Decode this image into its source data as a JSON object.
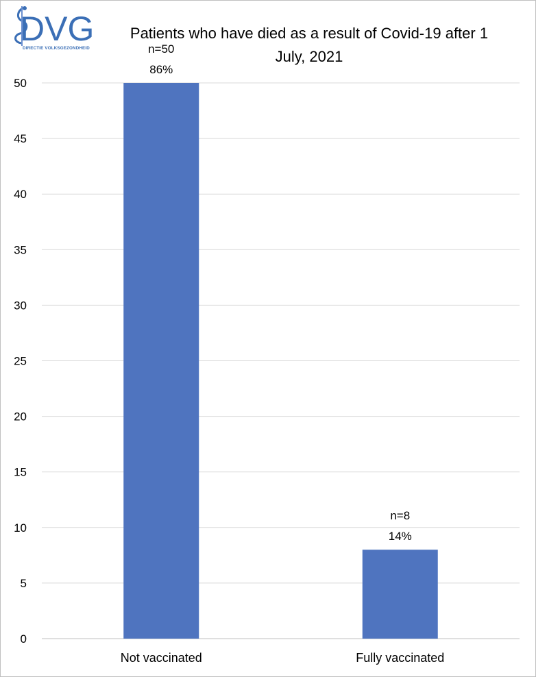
{
  "logo": {
    "name": "DVG",
    "subtitle": "DIRECTIE VOLKSGEZONDHEID"
  },
  "colors": {
    "bar": "#4f74bf",
    "grid": "#d9d9d9",
    "axis": "#bfbfbf",
    "logo": "#3b6fb6"
  },
  "chart_data": {
    "type": "bar",
    "title": "Patients who have died as a result of Covid-19 after 1\nJuly, 2021",
    "categories": [
      "Not vaccinated",
      "Fully vaccinated"
    ],
    "values": [
      50,
      8
    ],
    "data_labels": [
      [
        "n=50",
        "86%"
      ],
      [
        "n=8",
        "14%"
      ]
    ],
    "xlabel": "",
    "ylabel": "",
    "ylim": [
      0,
      50
    ],
    "yticks": [
      0,
      5,
      10,
      15,
      20,
      25,
      30,
      35,
      40,
      45,
      50
    ],
    "grid": true,
    "legend": "none"
  }
}
